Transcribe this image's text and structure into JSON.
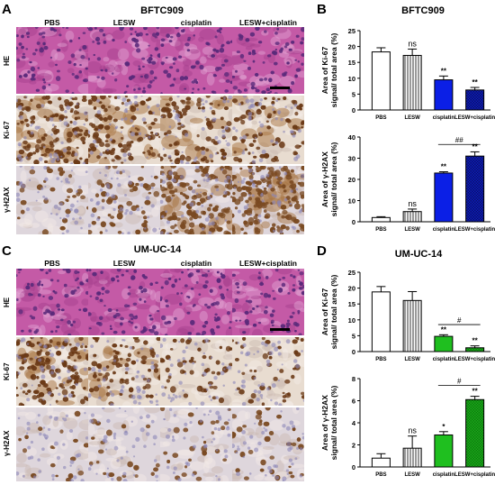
{
  "panels": {
    "A": {
      "letter": "A",
      "title": "BFTC909",
      "columns": [
        "PBS",
        "LESW",
        "cisplatin",
        "LESW+cisplatin"
      ],
      "rows": [
        "HE",
        "Ki-67",
        "γ-H2AX"
      ]
    },
    "C": {
      "letter": "C",
      "title": "UM-UC-14",
      "columns": [
        "PBS",
        "LESW",
        "cisplatin",
        "LESW+cisplatin"
      ],
      "rows": [
        "HE",
        "Ki-67",
        "γ-H2AX"
      ]
    },
    "B": {
      "letter": "B",
      "title": "BFTC909"
    },
    "D": {
      "letter": "D",
      "title": "UM-UC-14"
    }
  },
  "colors": {
    "he": "#c45aa6",
    "ki67_bg": "#e8dcd0",
    "ki67_nuc": "#6b3a17",
    "h2ax_bg": "#ded6dc",
    "h2ax_nuc": "#7a4a22",
    "cisplatin_B": "#0b1fe6",
    "combo_B": "#0b1166",
    "cisplatin_D": "#1fbf1f",
    "combo_D": "#0d7a0d"
  },
  "chart_data": [
    {
      "id": "B_ki67",
      "type": "bar",
      "panel": "B",
      "categories": [
        "PBS",
        "LESW",
        "cisplatin",
        "LESW+cisplatin"
      ],
      "values": [
        18.3,
        17.2,
        9.5,
        6.3
      ],
      "errors": [
        1.3,
        2.0,
        1.2,
        0.8
      ],
      "ylabel": "Area of Ki-67 signal/ total area (%)",
      "ylim": [
        0,
        25
      ],
      "yticks": [
        0,
        5,
        10,
        15,
        20,
        25
      ],
      "labels": [
        "",
        "ns",
        "**",
        "**"
      ],
      "brackets": []
    },
    {
      "id": "B_h2ax",
      "type": "bar",
      "panel": "B",
      "categories": [
        "PBS",
        "LESW",
        "cisplatin",
        "LESW+cisplatin"
      ],
      "values": [
        2.0,
        4.8,
        23.0,
        31.0
      ],
      "errors": [
        0.4,
        1.2,
        0.6,
        2.0
      ],
      "ylabel": "Area of γ-H2AX signal/ total area (%)",
      "ylim": [
        0,
        40
      ],
      "yticks": [
        0,
        10,
        20,
        30,
        40
      ],
      "labels": [
        "",
        "ns",
        "**",
        "**"
      ],
      "brackets": [
        {
          "from": 2,
          "to": 3,
          "y": 36.5,
          "label": "##"
        }
      ]
    },
    {
      "id": "D_ki67",
      "type": "bar",
      "panel": "D",
      "categories": [
        "PBS",
        "LESW",
        "cisplatin",
        "LESW+cisplatin"
      ],
      "values": [
        18.8,
        16.1,
        4.8,
        1.2
      ],
      "errors": [
        1.7,
        2.8,
        0.5,
        0.6
      ],
      "ylabel": "Area of Ki-67 signal/ total area (%)",
      "ylim": [
        0,
        25
      ],
      "yticks": [
        0,
        5,
        10,
        15,
        20,
        25
      ],
      "labels": [
        "",
        "",
        "**",
        "**"
      ],
      "brackets": [
        {
          "from": 2,
          "to": 3,
          "y": 8.5,
          "label": "#"
        }
      ]
    },
    {
      "id": "D_h2ax",
      "type": "bar",
      "panel": "D",
      "categories": [
        "PBS",
        "LESW",
        "cisplatin",
        "LESW+cisplatin"
      ],
      "values": [
        0.8,
        1.7,
        2.9,
        6.1
      ],
      "errors": [
        0.4,
        1.1,
        0.3,
        0.3
      ],
      "ylabel": "Area of γ-H2AX signal/ total area (%)",
      "ylim": [
        0,
        8
      ],
      "yticks": [
        0,
        2,
        4,
        6,
        8
      ],
      "labels": [
        "",
        "ns",
        "*",
        "**"
      ],
      "brackets": [
        {
          "from": 2,
          "to": 3,
          "y": 7.4,
          "label": "#"
        }
      ]
    }
  ]
}
